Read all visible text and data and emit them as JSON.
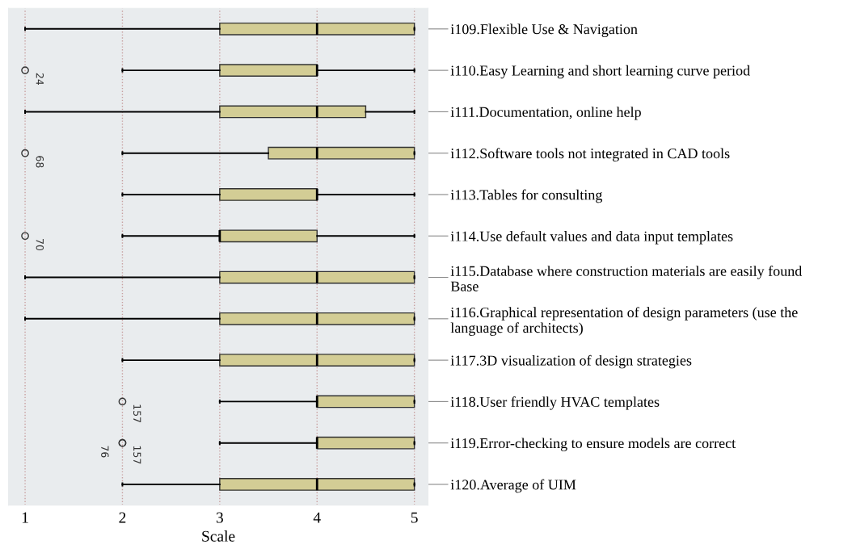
{
  "chart_data": {
    "type": "box",
    "orientation": "horizontal",
    "xlabel": "Scale",
    "categories": [
      "i109.Flexible Use & Navigation",
      "i110.Easy Learning and short learning curve period",
      "i111.Documentation, online help",
      "i112.Software tools not integrated in CAD tools",
      "i113.Tables for consulting",
      "i114.Use default values and data input templates",
      "i115.Database where construction materials are easily found\nBase",
      "i116.Graphical representation of design parameters (use the\nlanguage of architects)",
      "i117.3D visualization of design strategies",
      "i118.User friendly HVAC templates",
      "i119.Error-checking to ensure models are correct",
      "i120.Average of UIM"
    ],
    "series": [
      {
        "color": "#d3cd95",
        "boxes": [
          {
            "low": 1,
            "q1": 3,
            "median": 4,
            "q3": 5,
            "high": 5
          },
          {
            "low": 2,
            "q1": 3,
            "median": 4,
            "q3": 4,
            "high": 5,
            "outliers": [
              1
            ]
          },
          {
            "low": 1,
            "q1": 3,
            "median": 4,
            "q3": 4.5,
            "high": 5
          },
          {
            "low": 2,
            "q1": 3.5,
            "median": 4,
            "q3": 5,
            "high": 5,
            "outliers": [
              1
            ]
          },
          {
            "low": 2,
            "q1": 3,
            "median": 4,
            "q3": 4,
            "high": 5
          },
          {
            "low": 2,
            "q1": 3,
            "median": 3,
            "q3": 4,
            "high": 5,
            "outliers": [
              1
            ]
          },
          {
            "low": 1,
            "q1": 3,
            "median": 4,
            "q3": 5,
            "high": 5
          },
          {
            "low": 1,
            "q1": 3,
            "median": 4,
            "q3": 5,
            "high": 5
          },
          {
            "low": 2,
            "q1": 3,
            "median": 4,
            "q3": 5,
            "high": 5
          },
          {
            "low": 3,
            "q1": 4,
            "median": 4,
            "q3": 5,
            "high": 5,
            "outliers": [
              2
            ]
          },
          {
            "low": 3,
            "q1": 4,
            "median": 4,
            "q3": 5,
            "high": 5,
            "outliers": [
              2,
              2
            ]
          },
          {
            "low": 2,
            "q1": 3,
            "median": 4,
            "q3": 5,
            "high": 5
          }
        ]
      }
    ],
    "xlim": [
      0.83,
      5.14
    ],
    "xticks": [
      1,
      2,
      3,
      4,
      5
    ],
    "grid": "x",
    "annotations": [
      "24",
      "68",
      "70",
      "157",
      "157",
      "76"
    ]
  }
}
